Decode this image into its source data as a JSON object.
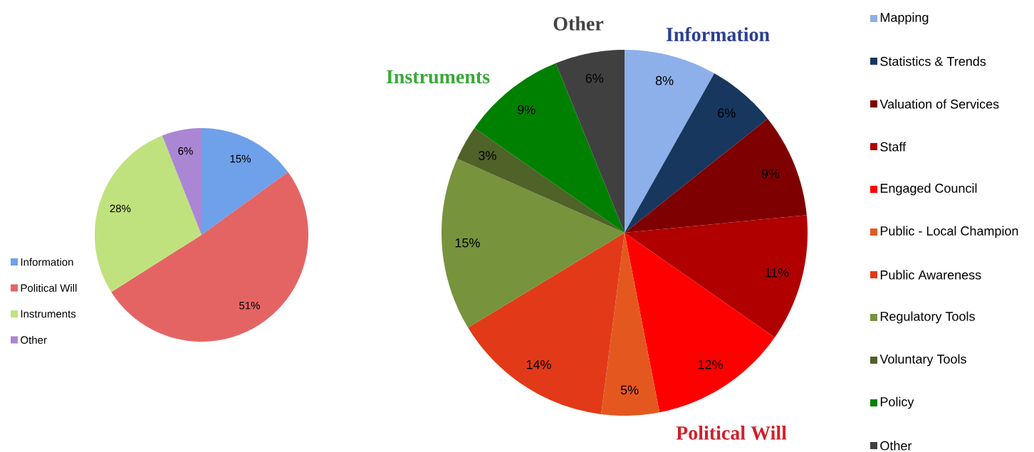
{
  "chart_data": [
    {
      "type": "pie",
      "categories": [
        "Information",
        "Political Will",
        "Instruments",
        "Other"
      ],
      "values": [
        15,
        51,
        28,
        6
      ],
      "value_labels": [
        "15%",
        "51%",
        "28%",
        "6%"
      ],
      "colors": [
        "#6fa0ea",
        "#e46464",
        "#c0e27e",
        "#ab86d4"
      ],
      "legend": "left"
    },
    {
      "type": "pie",
      "categories": [
        "Mapping",
        "Statistics & Trends",
        "Valuation of Services",
        "Staff",
        "Engaged Council",
        "Public - Local Champion",
        "Public Awareness",
        "Regulatory Tools",
        "Voluntary Tools",
        "Policy",
        "Other"
      ],
      "values": [
        8,
        6,
        9,
        11,
        12,
        5,
        14,
        15,
        3,
        9,
        6
      ],
      "value_labels": [
        "8%",
        "6%",
        "9%",
        "11%",
        "12%",
        "5%",
        "14%",
        "15%",
        "3%",
        "9%",
        "6%"
      ],
      "colors": [
        "#8db0ea",
        "#17375e",
        "#7f0000",
        "#b00000",
        "#ff0000",
        "#e4581f",
        "#e23a18",
        "#77933c",
        "#4f6228",
        "#008000",
        "#404040"
      ],
      "legend": "right",
      "annotations": [
        "Other",
        "Information",
        "Instruments",
        "Political Will"
      ]
    }
  ]
}
